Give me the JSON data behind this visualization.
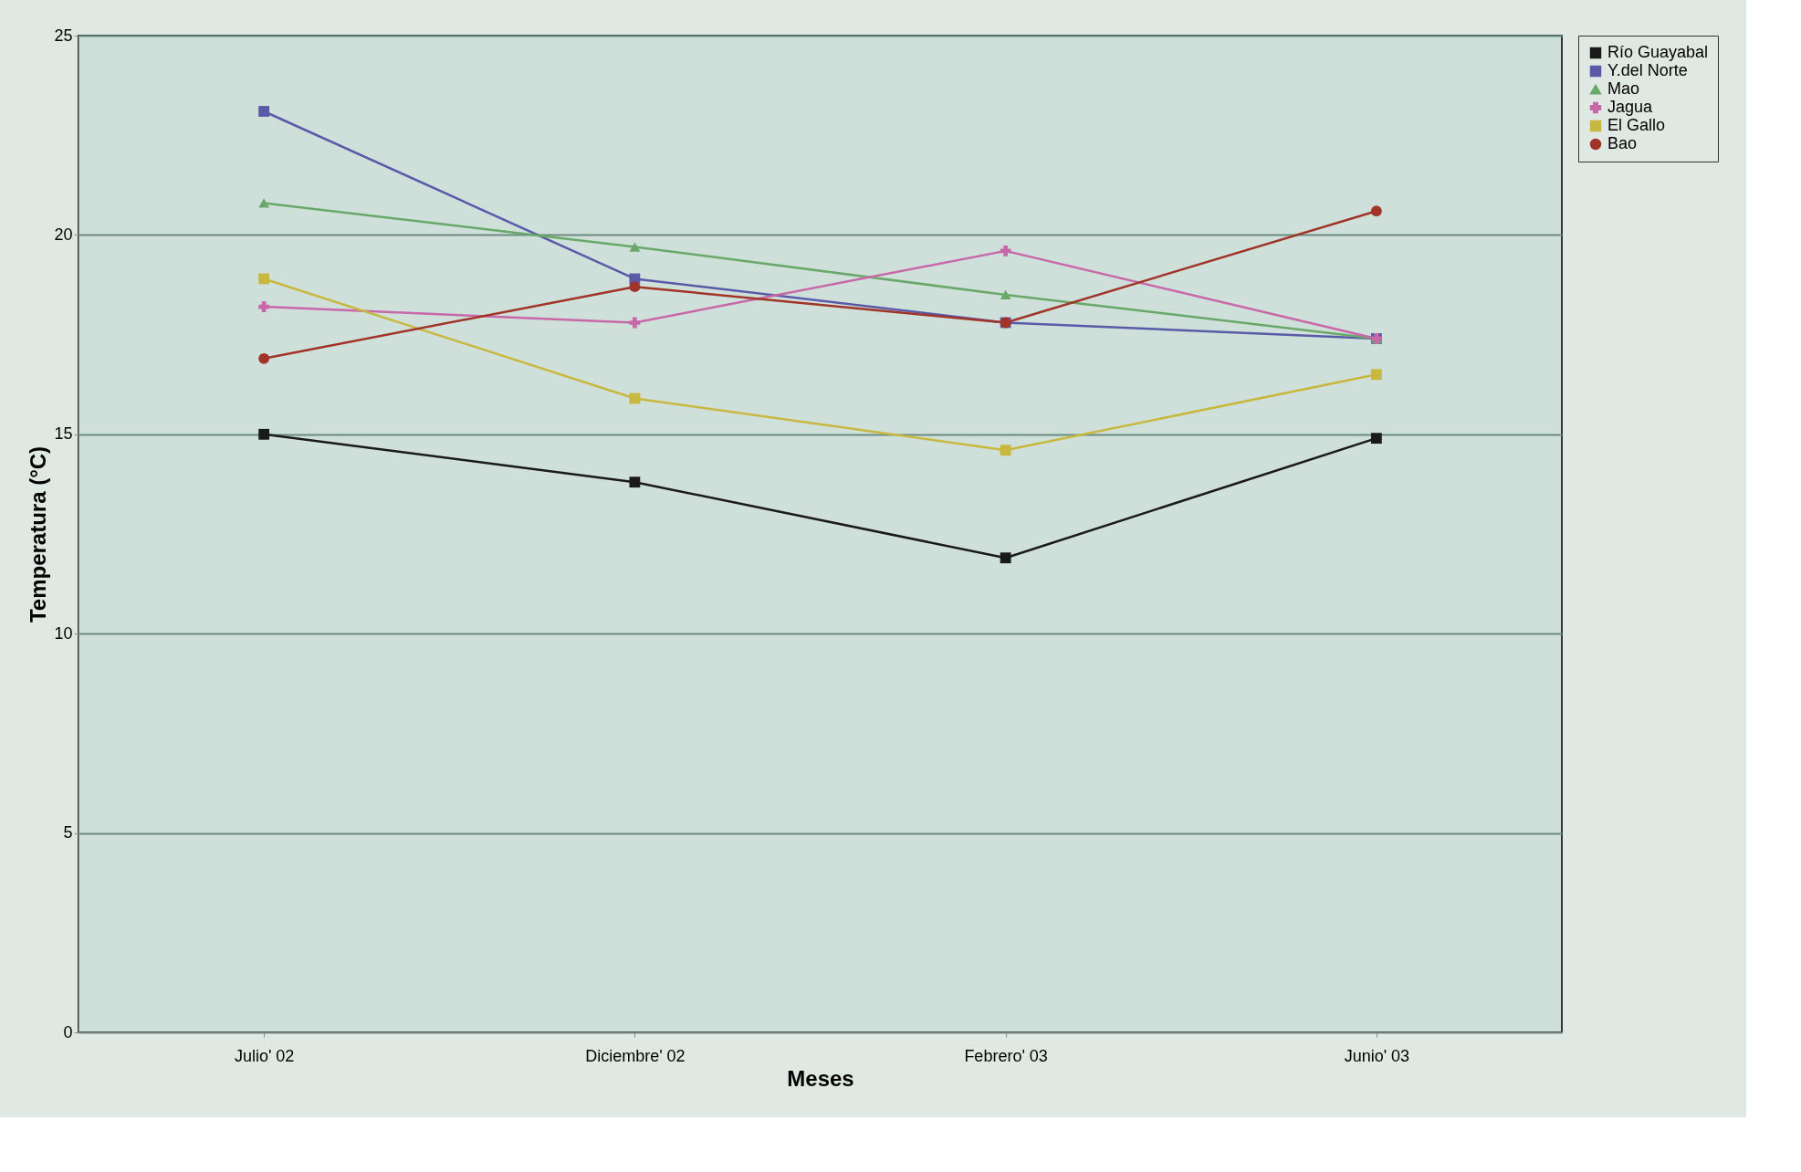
{
  "chart_data": {
    "type": "line",
    "xlabel": "Meses",
    "ylabel": "Temperatura (°C)",
    "categories": [
      "Julio' 02",
      "Diciembre' 02",
      "Febrero' 03",
      "Junio' 03"
    ],
    "series": [
      {
        "name": "Río Guayabal",
        "color": "#1a1a1a",
        "marker": "square",
        "values": [
          15.0,
          13.8,
          11.9,
          14.9
        ]
      },
      {
        "name": "Y.del Norte",
        "color": "#5a5aa8",
        "marker": "square",
        "values": [
          23.1,
          18.9,
          17.8,
          17.4
        ]
      },
      {
        "name": "Mao",
        "color": "#6aa86a",
        "marker": "triangle",
        "values": [
          20.8,
          19.7,
          18.5,
          17.4
        ]
      },
      {
        "name": "Jagua",
        "color": "#c868a8",
        "marker": "cross",
        "values": [
          18.2,
          17.8,
          19.6,
          17.4
        ]
      },
      {
        "name": "El Gallo",
        "color": "#c8b840",
        "marker": "square",
        "values": [
          18.9,
          15.9,
          14.6,
          16.5
        ]
      },
      {
        "name": "Bao",
        "color": "#a03428",
        "marker": "circle",
        "values": [
          16.9,
          18.7,
          17.8,
          20.6
        ]
      }
    ],
    "ylim": [
      0,
      25
    ],
    "yticks": [
      0,
      5,
      10,
      15,
      20,
      25
    ],
    "grid": "y",
    "legend": "right"
  }
}
